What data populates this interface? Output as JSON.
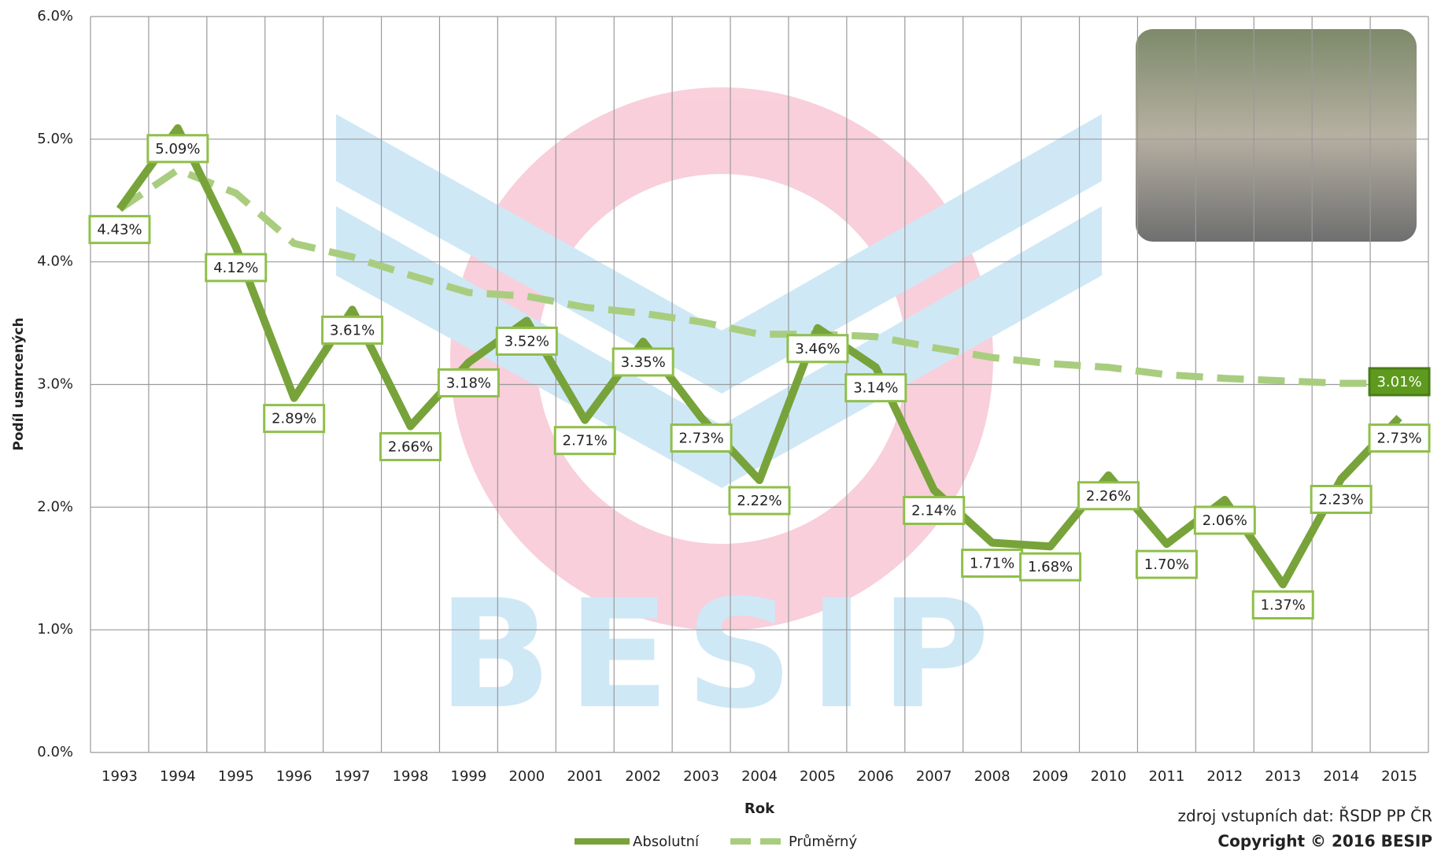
{
  "chart_data": {
    "type": "line",
    "watermark": "BESIP",
    "categories": [
      "1993",
      "1994",
      "1995",
      "1996",
      "1997",
      "1998",
      "1999",
      "2000",
      "2001",
      "2002",
      "2003",
      "2004",
      "2005",
      "2006",
      "2007",
      "2008",
      "2009",
      "2010",
      "2011",
      "2012",
      "2013",
      "2014",
      "2015"
    ],
    "series": [
      {
        "name": "Absolutní",
        "color": "#77a33a",
        "dashed": false,
        "values": [
          4.43,
          5.09,
          4.12,
          2.89,
          3.61,
          2.66,
          3.18,
          3.52,
          2.71,
          3.35,
          2.73,
          2.22,
          3.46,
          3.14,
          2.14,
          1.71,
          1.68,
          2.26,
          1.7,
          2.06,
          1.37,
          2.23,
          2.73
        ],
        "value_labels": [
          "4.43%",
          "5.09%",
          "4.12%",
          "2.89%",
          "3.61%",
          "2.66%",
          "3.18%",
          "3.52%",
          "2.71%",
          "3.35%",
          "2.73%",
          "2.22%",
          "3.46%",
          "3.14%",
          "2.14%",
          "1.71%",
          "1.68%",
          "2.26%",
          "1.70%",
          "2.06%",
          "1.37%",
          "2.23%",
          "2.73%"
        ]
      },
      {
        "name": "Průměrný",
        "color": "#a9cd7f",
        "dashed": true,
        "values": [
          4.43,
          4.75,
          4.56,
          4.15,
          4.04,
          3.89,
          3.75,
          3.72,
          3.63,
          3.58,
          3.51,
          3.41,
          3.41,
          3.39,
          3.3,
          3.22,
          3.17,
          3.14,
          3.08,
          3.05,
          3.03,
          3.01,
          3.01
        ],
        "value_labels": [
          null,
          null,
          null,
          null,
          null,
          null,
          null,
          null,
          null,
          null,
          null,
          null,
          null,
          null,
          null,
          null,
          null,
          null,
          null,
          null,
          null,
          null,
          "3.01%"
        ]
      }
    ],
    "ylim": [
      0,
      6
    ],
    "yticks": [
      {
        "value": 0,
        "label": "0.0%"
      },
      {
        "value": 1,
        "label": "1.0%"
      },
      {
        "value": 2,
        "label": "2.0%"
      },
      {
        "value": 3,
        "label": "3.0%"
      },
      {
        "value": 4,
        "label": "4.0%"
      },
      {
        "value": 5,
        "label": "5.0%"
      },
      {
        "value": 6,
        "label": "6.0%"
      }
    ],
    "grid": true,
    "x_label": "Rok",
    "y_label": "Podíl usmrcených",
    "legend": "bottom",
    "source": "zdroj vstupních dat: ŘSDP PP ČR",
    "copyright": "Copyright © 2016 BESIP"
  }
}
